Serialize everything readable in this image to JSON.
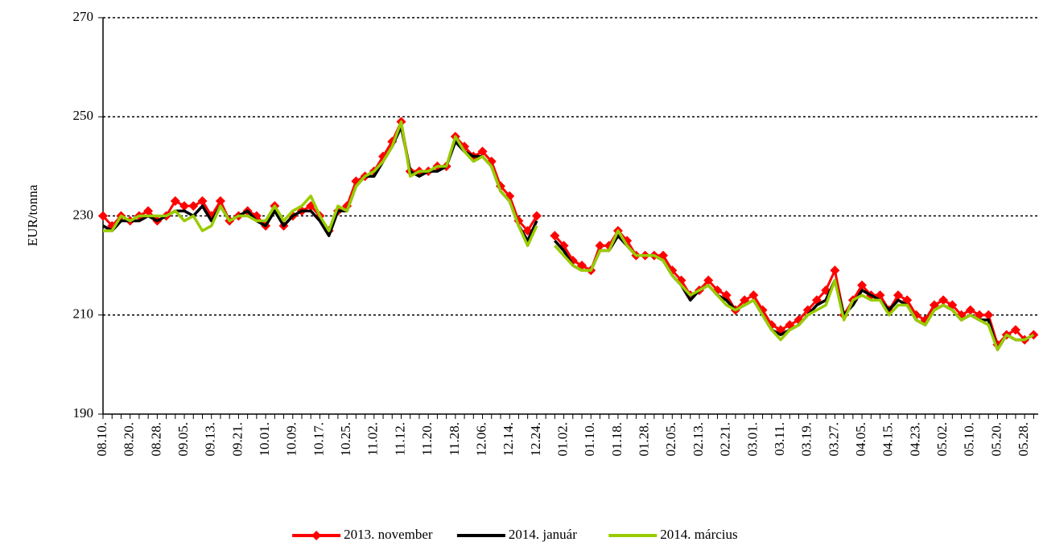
{
  "chart_data": {
    "type": "line",
    "y_label": "EUR/tonna",
    "categories": [
      "08.10.",
      null,
      null,
      "08.20.",
      null,
      null,
      "08.28.",
      null,
      null,
      "09.05.",
      null,
      null,
      "09.13.",
      null,
      null,
      "09.21.",
      null,
      null,
      "10.01.",
      null,
      null,
      "10.09.",
      null,
      null,
      "10.17.",
      null,
      null,
      "10.25.",
      null,
      null,
      "11.02.",
      null,
      null,
      "11.12.",
      null,
      null,
      "11.20.",
      null,
      null,
      "11.28.",
      null,
      null,
      "12.06.",
      null,
      null,
      "12.14.",
      null,
      null,
      "12.24.",
      null,
      null,
      "01.02.",
      null,
      null,
      "01.10.",
      null,
      null,
      "01.18.",
      null,
      null,
      "01.28.",
      null,
      null,
      "02.05.",
      null,
      null,
      "02.13.",
      null,
      null,
      "02.21.",
      null,
      null,
      "03.01.",
      null,
      null,
      "03.11.",
      null,
      null,
      "03.19.",
      null,
      null,
      "03.27.",
      null,
      null,
      "04.05.",
      null,
      null,
      "04.15.",
      null,
      null,
      "04.23.",
      null,
      null,
      "05.02.",
      null,
      null,
      "05.10.",
      null,
      null,
      "05.20.",
      null,
      null,
      "05.28.",
      null
    ],
    "series": [
      {
        "name": "2013. november",
        "color": "#ff0000",
        "marker": "diamond",
        "values": [
          230,
          228,
          230,
          229,
          230,
          231,
          229,
          230,
          233,
          232,
          232,
          233,
          230,
          233,
          229,
          230,
          231,
          230,
          228,
          232,
          228,
          230,
          231,
          232,
          230,
          227,
          231,
          232,
          237,
          238,
          239,
          242,
          245,
          249,
          239,
          239,
          239,
          240,
          240,
          246,
          244,
          242,
          243,
          241,
          236,
          234,
          229,
          227,
          230,
          null,
          226,
          224,
          221,
          220,
          219,
          224,
          224,
          227,
          225,
          222,
          222,
          222,
          222,
          219,
          217,
          214,
          215,
          217,
          215,
          214,
          211,
          213,
          214,
          211,
          208,
          207,
          208,
          209,
          211,
          213,
          215,
          219,
          210,
          213,
          216,
          214,
          214,
          211,
          214,
          213,
          210,
          209,
          212,
          213,
          212,
          210,
          211,
          210,
          210,
          204,
          206,
          207,
          205,
          206
        ]
      },
      {
        "name": "2014. január",
        "color": "#000000",
        "values": [
          228,
          227,
          229,
          229,
          229,
          230,
          229,
          230,
          231,
          231,
          230,
          232,
          229,
          232,
          229,
          230,
          231,
          229,
          228,
          231,
          228,
          230,
          231,
          231,
          229,
          226,
          231,
          231,
          236,
          238,
          238,
          241,
          244,
          248,
          239,
          238,
          239,
          239,
          240,
          245,
          243,
          242,
          242,
          240,
          235,
          233,
          228,
          225,
          229,
          null,
          225,
          223,
          220,
          219,
          219,
          223,
          223,
          226,
          224,
          222,
          222,
          222,
          221,
          218,
          216,
          213,
          215,
          216,
          214,
          213,
          211,
          212,
          213,
          210,
          207,
          206,
          207,
          208,
          210,
          212,
          213,
          217,
          210,
          212,
          215,
          214,
          213,
          211,
          213,
          212,
          209,
          208,
          211,
          212,
          211,
          209,
          210,
          209,
          209,
          203,
          206,
          205,
          205,
          206
        ]
      },
      {
        "name": "2014. március",
        "color": "#99cc00",
        "values": [
          227,
          227,
          230,
          229,
          230,
          230,
          230,
          230,
          231,
          229,
          230,
          227,
          228,
          232,
          229,
          230,
          230,
          229,
          229,
          232,
          229,
          231,
          232,
          234,
          230,
          227,
          232,
          231,
          236,
          238,
          239,
          241,
          244,
          249,
          238,
          239,
          239,
          240,
          240,
          246,
          243,
          241,
          242,
          240,
          235,
          233,
          228,
          224,
          228,
          null,
          224,
          222,
          220,
          219,
          219,
          223,
          223,
          227,
          224,
          222,
          222,
          222,
          221,
          218,
          216,
          214,
          215,
          216,
          214,
          212,
          211,
          212,
          213,
          210,
          207,
          205,
          207,
          208,
          210,
          211,
          212,
          217,
          209,
          213,
          214,
          213,
          213,
          210,
          212,
          212,
          209,
          208,
          211,
          212,
          211,
          209,
          210,
          209,
          208,
          203,
          206,
          205,
          205,
          206
        ]
      }
    ],
    "ylim": [
      190,
      270
    ],
    "yticks": [
      190,
      210,
      230,
      250,
      270
    ],
    "grid": true,
    "legend": "bottom"
  }
}
